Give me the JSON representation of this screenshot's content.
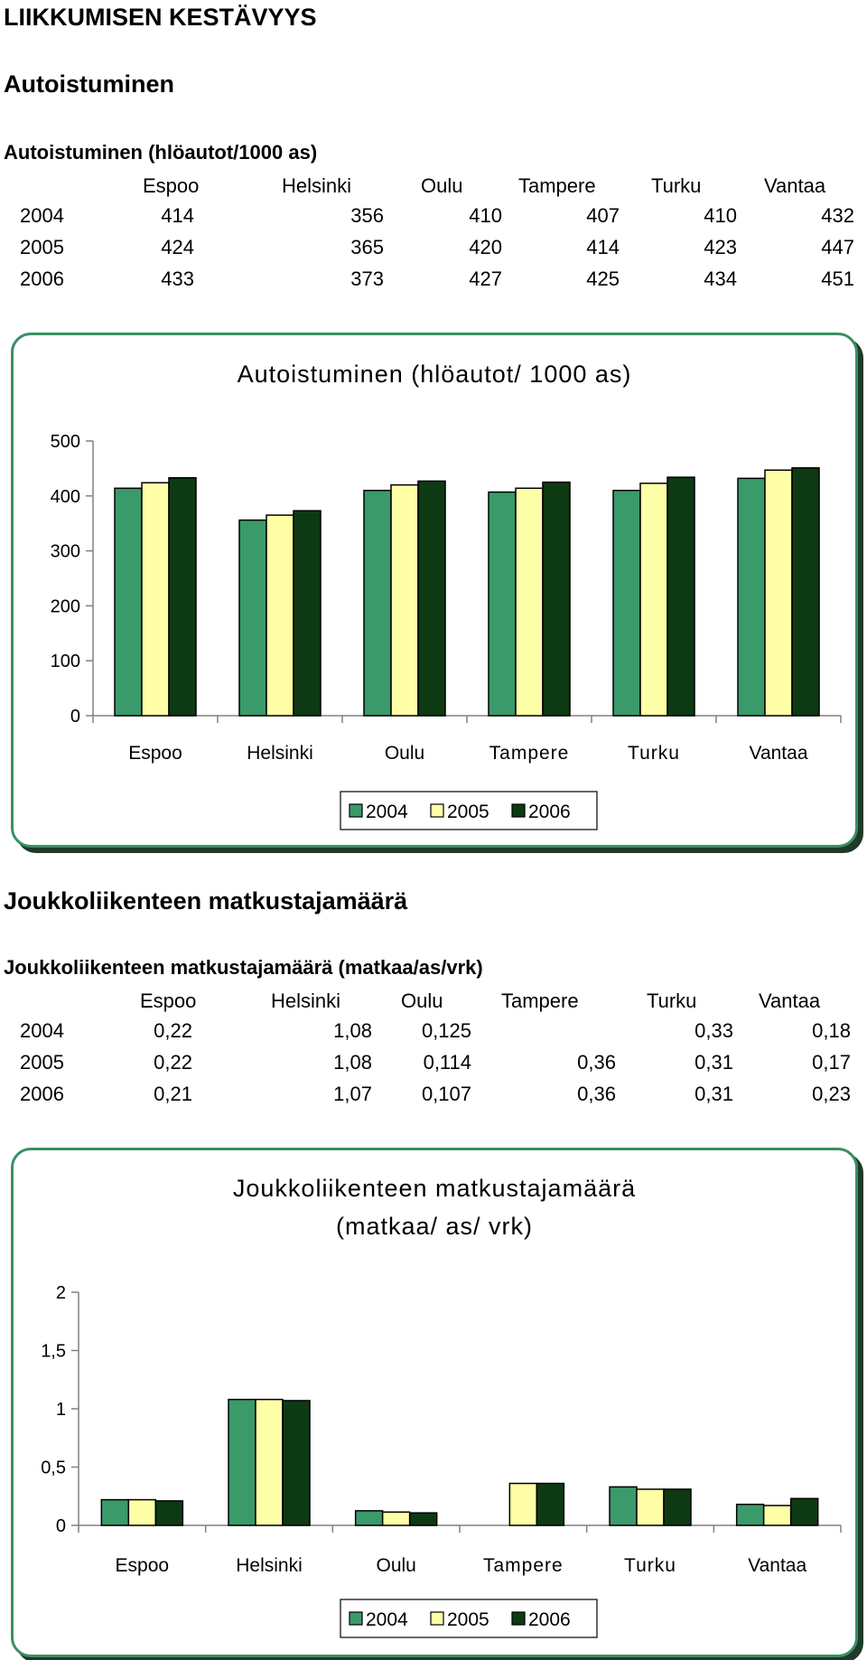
{
  "page_title": "LIIKKUMISEN KESTÄVYYS",
  "section1": {
    "heading": "Autoistuminen",
    "table_title": "Autoistuminen (hlöautot/1000 as)",
    "columns": [
      "Espoo",
      "Helsinki",
      "Oulu",
      "Tampere",
      "Turku",
      "Vantaa"
    ],
    "rows": [
      {
        "year": "2004",
        "values": [
          "414",
          "356",
          "410",
          "407",
          "410",
          "432"
        ]
      },
      {
        "year": "2005",
        "values": [
          "424",
          "365",
          "420",
          "414",
          "423",
          "447"
        ]
      },
      {
        "year": "2006",
        "values": [
          "433",
          "373",
          "427",
          "425",
          "434",
          "451"
        ]
      }
    ]
  },
  "section2": {
    "heading": "Joukkoliikenteen matkustajamäärä",
    "table_title": "Joukkoliikenteen matkustajamäärä (matkaa/as/vrk)",
    "columns": [
      "Espoo",
      "Helsinki",
      "Oulu",
      "Tampere",
      "Turku",
      "Vantaa"
    ],
    "rows": [
      {
        "year": "2004",
        "values": [
          "0,22",
          "1,08",
          "0,125",
          "",
          "0,33",
          "0,18"
        ]
      },
      {
        "year": "2005",
        "values": [
          "0,22",
          "1,08",
          "0,114",
          "0,36",
          "0,31",
          "0,17"
        ]
      },
      {
        "year": "2006",
        "values": [
          "0,21",
          "1,07",
          "0,107",
          "0,36",
          "0,31",
          "0,23"
        ]
      }
    ]
  },
  "colors": {
    "2004": "#3a9a6a",
    "2005": "#ffffa8",
    "2006": "#0d3a12",
    "frame": "#3a8f63"
  },
  "chart_data": [
    {
      "type": "bar",
      "title": "Autoistuminen (hlöautot/ 1000 as)",
      "title_lines": [
        "Autoistuminen (hlöautot/ 1000 as)"
      ],
      "categories": [
        "Espoo",
        "Helsinki",
        "Oulu",
        "Tampere",
        "Turku",
        "Vantaa"
      ],
      "series": [
        {
          "name": "2004",
          "values": [
            414,
            356,
            410,
            407,
            410,
            432
          ]
        },
        {
          "name": "2005",
          "values": [
            424,
            365,
            420,
            414,
            423,
            447
          ]
        },
        {
          "name": "2006",
          "values": [
            433,
            373,
            427,
            425,
            434,
            451
          ]
        }
      ],
      "ylim": [
        0,
        500
      ],
      "yticks": [
        0,
        100,
        200,
        300,
        400,
        500
      ],
      "ytick_labels": [
        "0",
        "100",
        "200",
        "300",
        "400",
        "500"
      ],
      "grid": false,
      "legend": "bottom"
    },
    {
      "type": "bar",
      "title": "Joukkoliikenteen matkustajamäärä (matkaa/ as/ vrk)",
      "title_lines": [
        "Joukkoliikenteen matkustajamäärä",
        "(matkaa/ as/ vrk)"
      ],
      "categories": [
        "Espoo",
        "Helsinki",
        "Oulu",
        "Tampere",
        "Turku",
        "Vantaa"
      ],
      "series": [
        {
          "name": "2004",
          "values": [
            0.22,
            1.08,
            0.125,
            null,
            0.33,
            0.18
          ]
        },
        {
          "name": "2005",
          "values": [
            0.22,
            1.08,
            0.114,
            0.36,
            0.31,
            0.17
          ]
        },
        {
          "name": "2006",
          "values": [
            0.21,
            1.07,
            0.107,
            0.36,
            0.31,
            0.23
          ]
        }
      ],
      "ylim": [
        0,
        2
      ],
      "yticks": [
        0,
        0.5,
        1,
        1.5,
        2
      ],
      "ytick_labels": [
        "0",
        "0,5",
        "1",
        "1,5",
        "2"
      ],
      "grid": false,
      "legend": "bottom"
    }
  ]
}
